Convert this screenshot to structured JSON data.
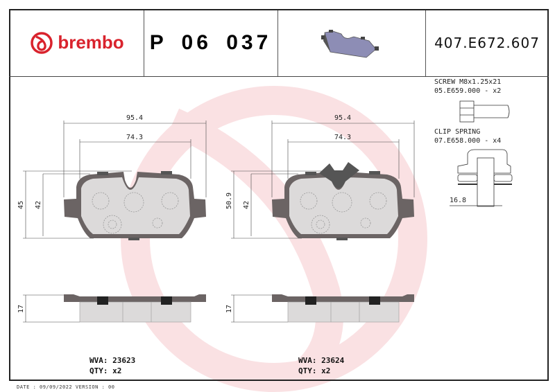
{
  "header": {
    "brand": "brembo",
    "part_number": "P 06 037",
    "reference": "407.E672.607",
    "brand_color": "#d9232d"
  },
  "pads": [
    {
      "width_outer": "95.4",
      "width_inner": "74.3",
      "height_outer": "45",
      "height_inner": "42",
      "thickness": "17",
      "wva_label": "WVA: 23623",
      "qty_label": "QTY: x2"
    },
    {
      "width_outer": "95.4",
      "width_inner": "74.3",
      "height_outer": "50.9",
      "height_inner": "42",
      "thickness": "17",
      "wva_label": "WVA: 23624",
      "qty_label": "QTY: x2"
    }
  ],
  "accessories": {
    "screw_title": "SCREW M8x1.25x21",
    "screw_code": "05.E659.000 - x2",
    "clip_title": "CLIP SPRING",
    "clip_code": "07.E658.000 - x4",
    "clip_dimension": "16.8"
  },
  "footer": "DATE : 09/09/2022 VERSION : 00"
}
